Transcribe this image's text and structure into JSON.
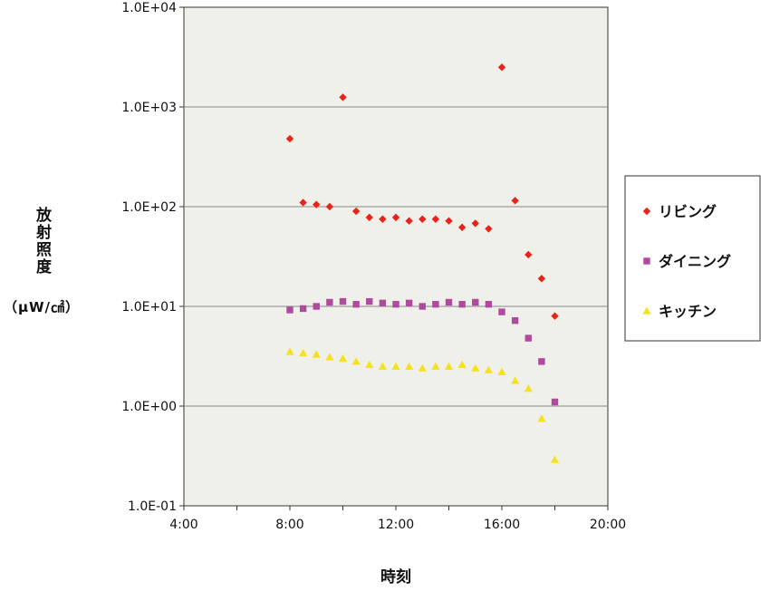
{
  "chart_data": {
    "type": "scatter",
    "xlabel": "時刻",
    "ylabel": "放射照度",
    "ylabel_unit": "（μW/㎠）",
    "x_ticks": [
      "4:00",
      "8:00",
      "12:00",
      "16:00",
      "20:00"
    ],
    "y_ticks": [
      "1.0E+04",
      "1.0E+03",
      "1.0E+02",
      "1.0E+01",
      "1.0E+00",
      "1.0E-01"
    ],
    "xlim": [
      "4:00",
      "20:00"
    ],
    "ylim": [
      0.1,
      10000
    ],
    "y_scale": "log",
    "grid": "horizontal",
    "legend_position": "right",
    "background": "#f0f0eb",
    "series": [
      {
        "name": "リビング",
        "marker": "diamond",
        "color": "#e8231c",
        "points": [
          [
            "8:00",
            480
          ],
          [
            "8:30",
            110
          ],
          [
            "9:00",
            105
          ],
          [
            "9:30",
            100
          ],
          [
            "10:00",
            1250
          ],
          [
            "10:30",
            90
          ],
          [
            "11:00",
            78
          ],
          [
            "11:30",
            75
          ],
          [
            "12:00",
            78
          ],
          [
            "12:30",
            72
          ],
          [
            "13:00",
            75
          ],
          [
            "13:30",
            75
          ],
          [
            "14:00",
            72
          ],
          [
            "14:30",
            62
          ],
          [
            "15:00",
            68
          ],
          [
            "15:30",
            60
          ],
          [
            "16:00",
            2500
          ],
          [
            "16:30",
            115
          ],
          [
            "17:00",
            33
          ],
          [
            "17:30",
            19
          ],
          [
            "18:00",
            8
          ]
        ]
      },
      {
        "name": "ダイニング",
        "marker": "square",
        "color": "#b04a9e",
        "points": [
          [
            "8:00",
            9.2
          ],
          [
            "8:30",
            9.5
          ],
          [
            "9:00",
            10
          ],
          [
            "9:30",
            11
          ],
          [
            "10:00",
            11.2
          ],
          [
            "10:30",
            10.5
          ],
          [
            "11:00",
            11.2
          ],
          [
            "11:30",
            10.8
          ],
          [
            "12:00",
            10.5
          ],
          [
            "12:30",
            10.8
          ],
          [
            "13:00",
            10
          ],
          [
            "13:30",
            10.5
          ],
          [
            "14:00",
            11
          ],
          [
            "14:30",
            10.5
          ],
          [
            "15:00",
            11
          ],
          [
            "15:30",
            10.5
          ],
          [
            "16:00",
            8.8
          ],
          [
            "16:30",
            7.2
          ],
          [
            "17:00",
            4.8
          ],
          [
            "17:30",
            2.8
          ],
          [
            "18:00",
            1.1
          ]
        ]
      },
      {
        "name": "キッチン",
        "marker": "triangle",
        "color": "#f5e11e",
        "points": [
          [
            "8:00",
            3.5
          ],
          [
            "8:30",
            3.4
          ],
          [
            "9:00",
            3.3
          ],
          [
            "9:30",
            3.1
          ],
          [
            "10:00",
            3.0
          ],
          [
            "10:30",
            2.8
          ],
          [
            "11:00",
            2.6
          ],
          [
            "11:30",
            2.5
          ],
          [
            "12:00",
            2.5
          ],
          [
            "12:30",
            2.5
          ],
          [
            "13:00",
            2.4
          ],
          [
            "13:30",
            2.5
          ],
          [
            "14:00",
            2.5
          ],
          [
            "14:30",
            2.6
          ],
          [
            "15:00",
            2.4
          ],
          [
            "15:30",
            2.3
          ],
          [
            "16:00",
            2.2
          ],
          [
            "16:30",
            1.8
          ],
          [
            "17:00",
            1.5
          ],
          [
            "17:30",
            0.75
          ],
          [
            "18:00",
            0.29
          ]
        ]
      }
    ]
  }
}
